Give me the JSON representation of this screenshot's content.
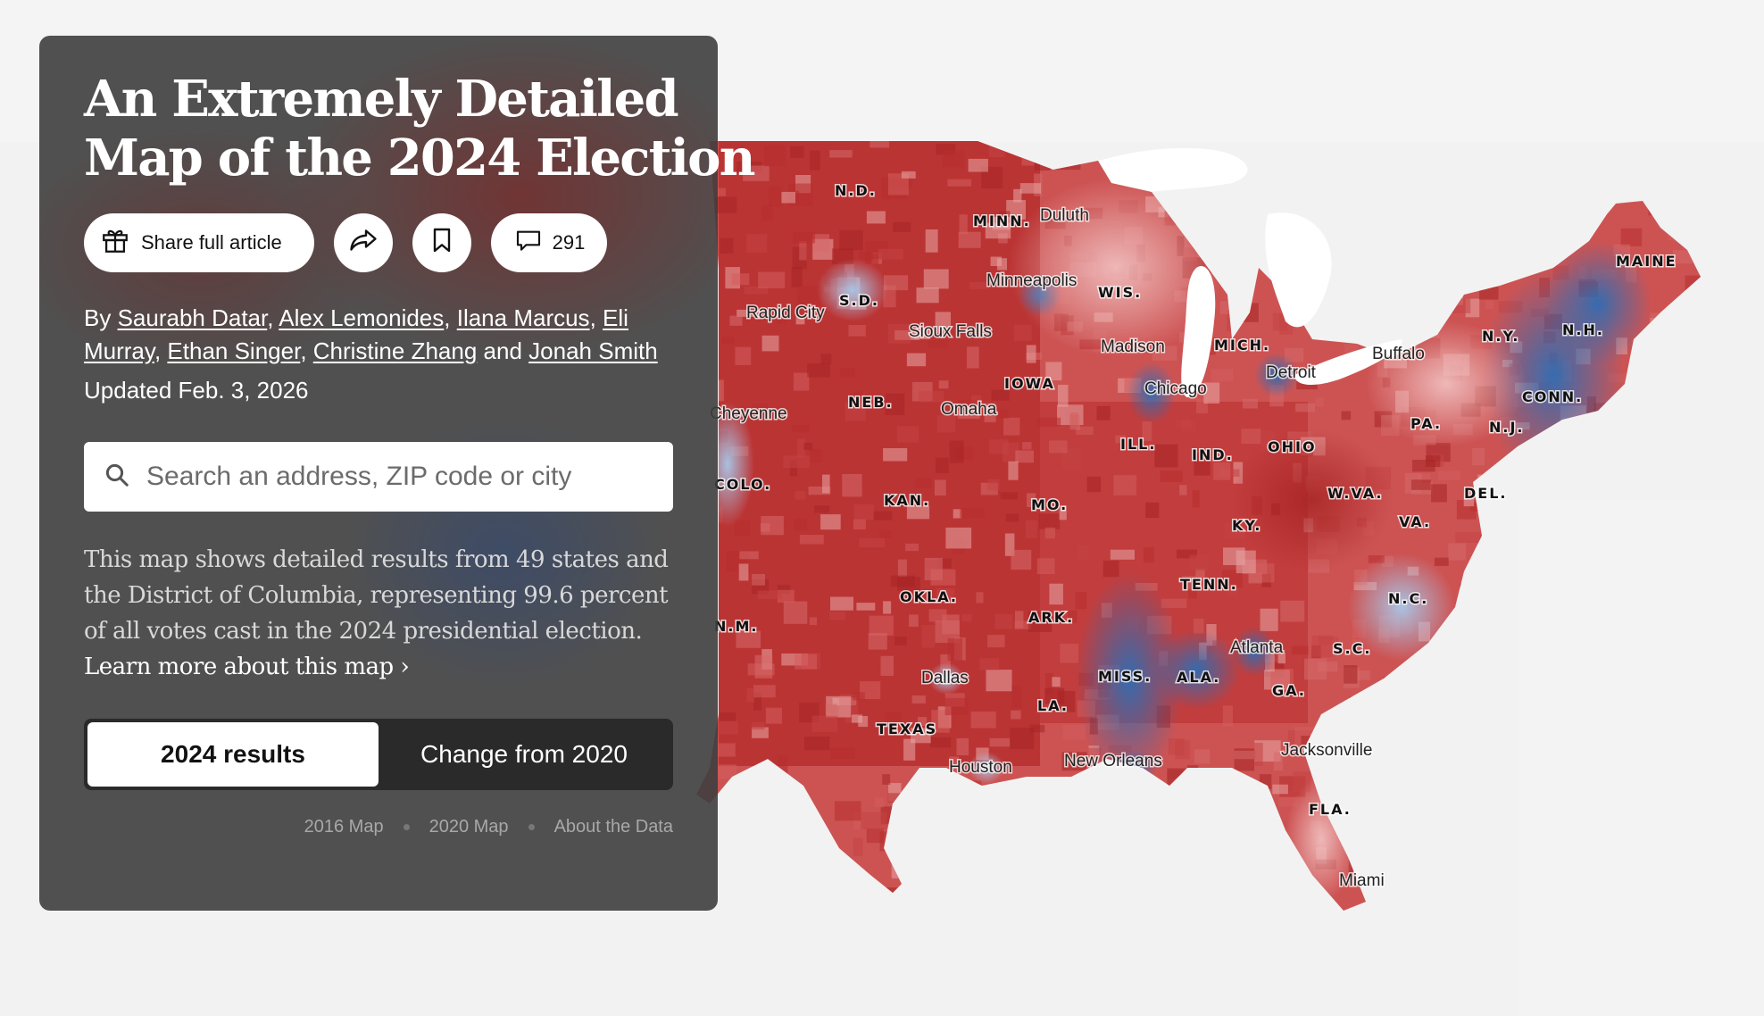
{
  "article": {
    "title_line1": "An Extremely Detailed",
    "title_line2": "Map of the 2024 Election",
    "share_label": "Share full article",
    "comments_count": "291",
    "byline_prefix": "By",
    "authors": [
      "Saurabh Datar",
      "Alex Lemonides",
      "Ilana Marcus",
      "Eli Murray",
      "Ethan Singer",
      "Christine Zhang",
      "Jonah Smith"
    ],
    "byline_and": "and",
    "updated": "Updated Feb. 3, 2026",
    "search_placeholder": "Search an address, ZIP code or city",
    "description": "This map shows detailed results from 49 states and the District of Columbia, representing 99.6 percent of all votes cast in the 2024 presidential election.",
    "learn_more": "Learn more about this map ›"
  },
  "toggle": {
    "active_label": "2024 results",
    "inactive_label": "Change from 2020"
  },
  "footer_links": [
    "2016 Map",
    "2020 Map",
    "About the Data"
  ],
  "map": {
    "colors": {
      "background": "#f2f2f2",
      "republican_dark": "#b82e2e",
      "republican_mid": "#cf5858",
      "republican_light": "#e9a6a6",
      "democrat_dark": "#2e6db4",
      "democrat_light": "#a8c8ea",
      "water": "#ffffff"
    },
    "state_labels": [
      "N.D.",
      "MINN.",
      "S.D.",
      "WIS.",
      "MICH.",
      "N.Y.",
      "N.H.",
      "MAINE",
      "NEB.",
      "IOWA",
      "CONN.",
      "PA.",
      "N.J.",
      "ILL.",
      "IND.",
      "OHIO",
      "KAN.",
      "MO.",
      "W.VA.",
      "DEL.",
      "VA.",
      "KY.",
      "OKLA.",
      "TENN.",
      "N.C.",
      "ARK.",
      "S.C.",
      "MISS.",
      "ALA.",
      "GA.",
      "LA.",
      "TEXAS",
      "FLA.",
      "COLO.",
      "N.M."
    ],
    "city_labels": [
      "Duluth",
      "Minneapolis",
      "Rapid City",
      "Sioux Falls",
      "Madison",
      "Detroit",
      "Buffalo",
      "Chicago",
      "Omaha",
      "Cheyenne",
      "Atlanta",
      "Dallas",
      "Houston",
      "New Orleans",
      "Jacksonville",
      "Miami"
    ]
  }
}
